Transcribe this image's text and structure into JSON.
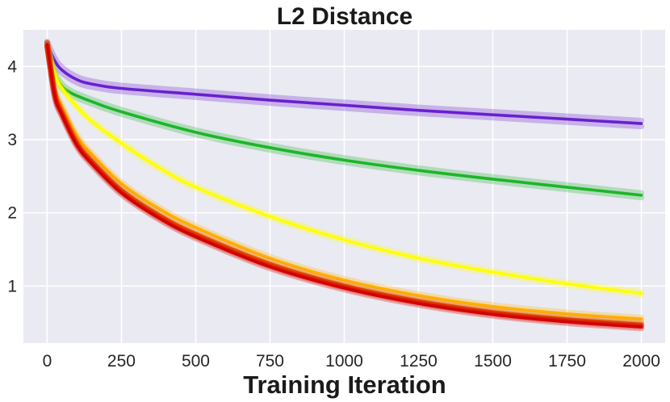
{
  "chart_data": {
    "type": "line",
    "title": "L2 Distance",
    "xlabel": "Training Iteration",
    "ylabel": "",
    "xlim": [
      -80,
      2080
    ],
    "ylim": [
      0.22,
      4.5
    ],
    "xticks": [
      0,
      250,
      500,
      750,
      1000,
      1250,
      1500,
      1750,
      2000
    ],
    "yticks": [
      1,
      2,
      3,
      4
    ],
    "grid": true,
    "colors": {
      "background": "#eaeaf2",
      "grid": "#ffffff"
    },
    "series": [
      {
        "name": "purple",
        "color": "#6a1fd0",
        "band": 0.04,
        "x": [
          0,
          25,
          50,
          100,
          150,
          250,
          500,
          750,
          1000,
          1250,
          1500,
          1750,
          2000
        ],
        "y": [
          4.3,
          4.08,
          3.95,
          3.82,
          3.76,
          3.7,
          3.62,
          3.54,
          3.47,
          3.4,
          3.34,
          3.28,
          3.22
        ]
      },
      {
        "name": "green",
        "color": "#1db52a",
        "band": 0.03,
        "x": [
          0,
          25,
          50,
          75,
          100,
          150,
          250,
          500,
          750,
          1000,
          1250,
          1500,
          1750,
          2000
        ],
        "y": [
          4.3,
          3.9,
          3.73,
          3.65,
          3.6,
          3.52,
          3.38,
          3.1,
          2.89,
          2.72,
          2.58,
          2.46,
          2.35,
          2.24
        ]
      },
      {
        "name": "yellow",
        "color": "#ffff00",
        "band": 0.02,
        "x": [
          0,
          25,
          50,
          100,
          150,
          250,
          375,
          500,
          750,
          1000,
          1250,
          1500,
          1750,
          2000
        ],
        "y": [
          4.3,
          3.9,
          3.7,
          3.45,
          3.25,
          2.95,
          2.62,
          2.35,
          1.95,
          1.63,
          1.38,
          1.19,
          1.03,
          0.9
        ]
      },
      {
        "name": "orange",
        "color": "#ffb000",
        "band": 0.02,
        "x": [
          0,
          25,
          50,
          100,
          150,
          250,
          375,
          500,
          750,
          1000,
          1250,
          1500,
          1750,
          2000
        ],
        "y": [
          4.3,
          3.7,
          3.45,
          3.05,
          2.8,
          2.4,
          2.06,
          1.8,
          1.38,
          1.08,
          0.87,
          0.72,
          0.62,
          0.55
        ]
      },
      {
        "name": "dark-orange",
        "color": "#ee6a00",
        "band": 0.02,
        "x": [
          0,
          25,
          50,
          100,
          150,
          250,
          375,
          500,
          750,
          1000,
          1250,
          1500,
          1750,
          2000
        ],
        "y": [
          4.3,
          3.65,
          3.38,
          2.97,
          2.72,
          2.32,
          1.98,
          1.72,
          1.31,
          1.01,
          0.8,
          0.65,
          0.55,
          0.48
        ]
      },
      {
        "name": "red-orange",
        "color": "#d83000",
        "band": 0.02,
        "x": [
          0,
          25,
          50,
          100,
          150,
          250,
          375,
          500,
          750,
          1000,
          1250,
          1500,
          1750,
          2000
        ],
        "y": [
          4.3,
          3.62,
          3.35,
          2.94,
          2.69,
          2.29,
          1.95,
          1.69,
          1.28,
          0.99,
          0.78,
          0.63,
          0.53,
          0.46
        ]
      },
      {
        "name": "red",
        "color": "#d40000",
        "band": 0.02,
        "x": [
          0,
          25,
          50,
          100,
          150,
          250,
          375,
          500,
          750,
          1000,
          1250,
          1500,
          1750,
          2000
        ],
        "y": [
          4.3,
          3.6,
          3.33,
          2.92,
          2.67,
          2.27,
          1.93,
          1.67,
          1.26,
          0.97,
          0.76,
          0.61,
          0.51,
          0.44
        ]
      }
    ]
  }
}
